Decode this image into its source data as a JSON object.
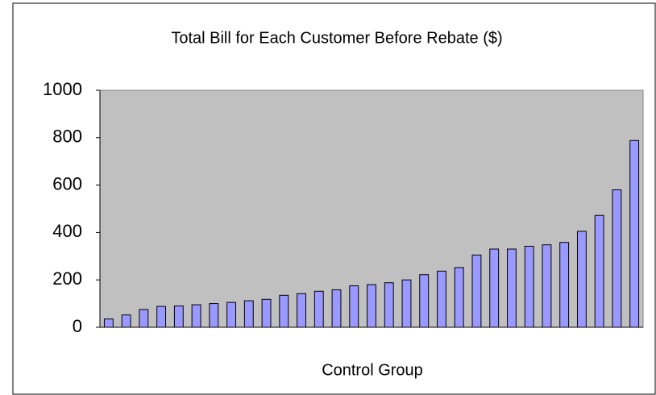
{
  "chart_data": {
    "type": "bar",
    "title": "Total Bill for Each Customer Before Rebate ($)",
    "x_label": "Control Group",
    "categories": [
      null,
      null,
      null,
      null,
      null,
      null,
      null,
      null,
      null,
      null,
      null,
      null,
      null,
      null,
      null,
      null,
      null,
      null,
      null,
      null,
      null,
      null,
      null,
      null,
      null,
      null,
      null,
      null,
      null,
      null,
      null
    ],
    "values": [
      35,
      52,
      75,
      88,
      90,
      95,
      100,
      105,
      112,
      118,
      135,
      142,
      152,
      158,
      175,
      180,
      188,
      200,
      222,
      237,
      252,
      305,
      330,
      330,
      342,
      348,
      358,
      405,
      472,
      580,
      788
    ],
    "color": "#9999ff",
    "ylim": [
      0,
      1000
    ],
    "yticks": [
      0,
      200,
      400,
      600,
      800,
      1000
    ],
    "grid": false
  }
}
